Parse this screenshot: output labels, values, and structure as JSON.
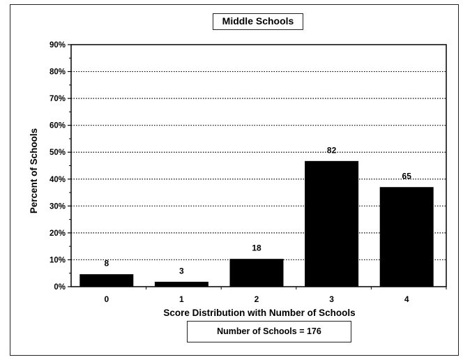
{
  "chart_data": {
    "type": "bar",
    "title": "Middle Schools",
    "xlabel": "Score Distribution with Number of Schools",
    "ylabel": "Percent of Schools",
    "categories": [
      "0",
      "1",
      "2",
      "3",
      "4"
    ],
    "values": [
      4.5,
      1.7,
      10.2,
      46.6,
      36.9
    ],
    "data_labels": [
      "8",
      "3",
      "18",
      "82",
      "65"
    ],
    "ylim": [
      0,
      90
    ],
    "yticks": [
      "0%",
      "10%",
      "20%",
      "30%",
      "40%",
      "50%",
      "60%",
      "70%",
      "80%",
      "90%"
    ],
    "grid": "dotted horizontal",
    "bar_color": "#000000",
    "note": "Number of Schools = 176"
  }
}
